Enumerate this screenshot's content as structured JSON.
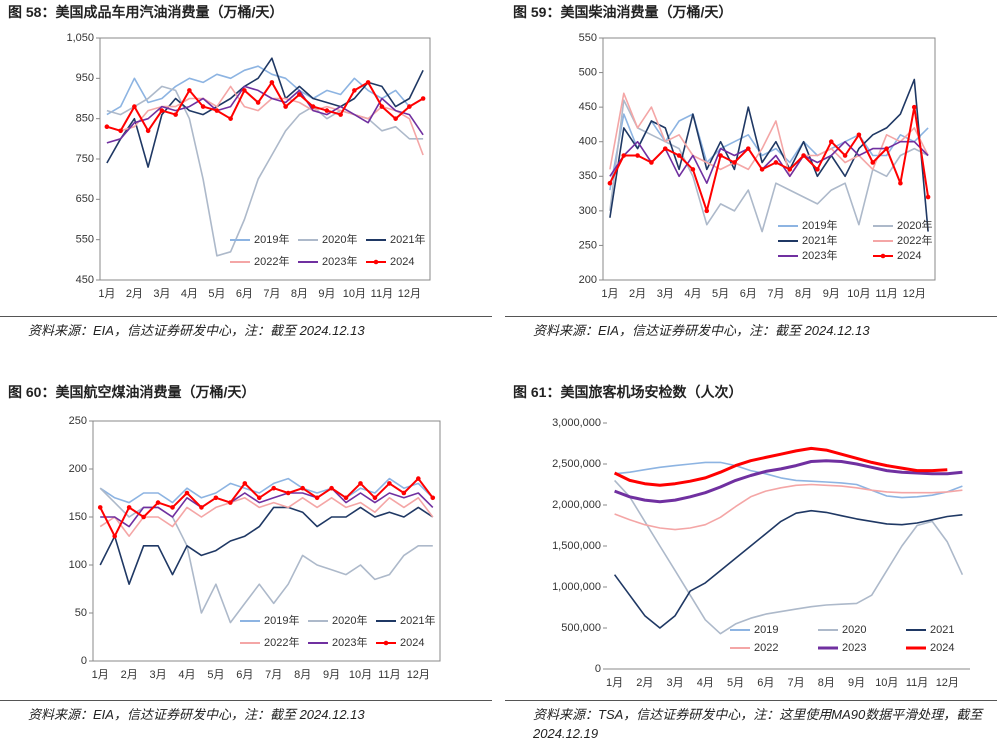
{
  "chart_data": [
    {
      "type": "line",
      "title": "图 58：美国成品车用汽油消费量（万桶/天）",
      "source": "资料来源：EIA，信达证券研发中心，注：截至 2024.12.13",
      "categories": [
        "1月",
        null,
        "2月",
        null,
        "3月",
        null,
        "4月",
        null,
        "5月",
        null,
        "6月",
        null,
        "7月",
        null,
        "8月",
        null,
        "9月",
        null,
        "10月",
        null,
        "11月",
        null,
        "12月",
        null
      ],
      "ylim": [
        450,
        1050
      ],
      "yticks": [
        450,
        550,
        650,
        750,
        850,
        950,
        {
          "value": 1050,
          "label": "1,050"
        }
      ],
      "legend": "lower right",
      "frame": true,
      "series": [
        {
          "name": "2019年",
          "color": "#8db4e2",
          "values": [
            860,
            880,
            950,
            890,
            900,
            930,
            950,
            940,
            960,
            950,
            970,
            980,
            960,
            950,
            920,
            900,
            920,
            910,
            950,
            920,
            900,
            920,
            880,
            900
          ]
        },
        {
          "name": "2020年",
          "color": "#adb9ca",
          "values": [
            870,
            860,
            880,
            900,
            930,
            920,
            850,
            700,
            510,
            520,
            600,
            700,
            760,
            820,
            860,
            880,
            850,
            870,
            860,
            850,
            820,
            830,
            800,
            800
          ]
        },
        {
          "name": "2021年",
          "color": "#1f3864",
          "values": [
            740,
            800,
            850,
            730,
            860,
            900,
            870,
            860,
            880,
            900,
            930,
            950,
            1000,
            900,
            930,
            900,
            890,
            880,
            900,
            940,
            930,
            880,
            900,
            970
          ]
        },
        {
          "name": "2022年",
          "color": "#f4a6a6",
          "values": [
            830,
            820,
            830,
            870,
            880,
            880,
            900,
            900,
            880,
            930,
            880,
            870,
            900,
            900,
            890,
            870,
            880,
            870,
            860,
            850,
            880,
            870,
            850,
            760
          ]
        },
        {
          "name": "2023年",
          "color": "#7030a0",
          "values": [
            790,
            800,
            840,
            850,
            880,
            870,
            880,
            900,
            870,
            880,
            930,
            920,
            900,
            890,
            920,
            870,
            860,
            880,
            860,
            840,
            900,
            870,
            860,
            810
          ]
        },
        {
          "name": "2024",
          "color": "#ff0000",
          "marker": true,
          "values": [
            830,
            820,
            880,
            820,
            870,
            860,
            920,
            880,
            870,
            850,
            920,
            890,
            940,
            880,
            910,
            880,
            870,
            860,
            920,
            940,
            880,
            850,
            880,
            900
          ]
        }
      ]
    },
    {
      "type": "line",
      "title": "图 59：美国柴油消费量（万桶/天）",
      "source": "资料来源：EIA，信达证券研发中心，注：截至 2024.12.13",
      "categories": [
        "1月",
        null,
        "2月",
        null,
        "3月",
        null,
        "4月",
        null,
        "5月",
        null,
        "6月",
        null,
        "7月",
        null,
        "8月",
        null,
        "9月",
        null,
        "10月",
        null,
        "11月",
        null,
        "12月",
        null
      ],
      "ylim": [
        200,
        550
      ],
      "yticks": [
        200,
        250,
        300,
        350,
        400,
        450,
        500,
        550
      ],
      "legend": "lower left",
      "frame": true,
      "series": [
        {
          "name": "2019年",
          "color": "#8db4e2",
          "values": [
            330,
            440,
            390,
            430,
            400,
            430,
            440,
            370,
            390,
            400,
            410,
            380,
            390,
            370,
            400,
            380,
            390,
            400,
            410,
            380,
            380,
            410,
            400,
            420
          ]
        },
        {
          "name": "2020年",
          "color": "#adb9ca",
          "values": [
            300,
            460,
            420,
            410,
            400,
            390,
            350,
            280,
            310,
            300,
            330,
            270,
            340,
            330,
            320,
            310,
            330,
            340,
            280,
            360,
            350,
            380,
            390,
            380
          ]
        },
        {
          "name": "2021年",
          "color": "#1f3864",
          "values": [
            290,
            420,
            390,
            430,
            420,
            360,
            440,
            360,
            400,
            360,
            450,
            370,
            400,
            360,
            400,
            350,
            380,
            350,
            390,
            410,
            420,
            440,
            490,
            270
          ]
        },
        {
          "name": "2022年",
          "color": "#f4a6a6",
          "values": [
            360,
            470,
            420,
            450,
            400,
            410,
            380,
            370,
            360,
            370,
            360,
            390,
            430,
            350,
            380,
            380,
            390,
            370,
            380,
            360,
            410,
            400,
            420,
            380
          ]
        },
        {
          "name": "2023年",
          "color": "#7030a0",
          "values": [
            350,
            380,
            400,
            370,
            390,
            350,
            380,
            340,
            390,
            380,
            390,
            360,
            380,
            350,
            380,
            370,
            380,
            400,
            380,
            390,
            390,
            400,
            400,
            380
          ]
        },
        {
          "name": "2024",
          "color": "#ff0000",
          "marker": true,
          "values": [
            340,
            380,
            380,
            370,
            390,
            380,
            360,
            300,
            380,
            370,
            390,
            360,
            370,
            360,
            380,
            360,
            400,
            380,
            410,
            370,
            390,
            340,
            450,
            320
          ]
        }
      ]
    },
    {
      "type": "line",
      "title": "图 60：美国航空煤油消费量（万桶/天）",
      "source": "资料来源：EIA，信达证券研发中心，注：截至 2024.12.13",
      "categories": [
        "1月",
        null,
        "2月",
        null,
        "3月",
        null,
        "4月",
        null,
        "5月",
        null,
        "6月",
        null,
        "7月",
        null,
        "8月",
        null,
        "9月",
        null,
        "10月",
        null,
        "11月",
        null,
        "12月",
        null
      ],
      "ylim": [
        0,
        250
      ],
      "yticks": [
        0,
        50,
        100,
        150,
        200,
        250
      ],
      "legend": "lower right",
      "frame": true,
      "series": [
        {
          "name": "2019年",
          "color": "#8db4e2",
          "values": [
            180,
            170,
            165,
            175,
            175,
            165,
            180,
            170,
            175,
            185,
            180,
            175,
            185,
            190,
            180,
            175,
            180,
            170,
            180,
            175,
            190,
            180,
            185,
            170
          ]
        },
        {
          "name": "2020年",
          "color": "#adb9ca",
          "values": [
            180,
            165,
            150,
            160,
            160,
            150,
            120,
            50,
            80,
            40,
            60,
            80,
            60,
            80,
            110,
            100,
            95,
            90,
            100,
            85,
            90,
            110,
            120,
            120
          ]
        },
        {
          "name": "2021年",
          "color": "#1f3864",
          "values": [
            100,
            130,
            80,
            120,
            120,
            90,
            120,
            110,
            115,
            125,
            130,
            140,
            160,
            160,
            155,
            140,
            150,
            150,
            160,
            150,
            155,
            150,
            160,
            150
          ]
        },
        {
          "name": "2022年",
          "color": "#f4a6a6",
          "values": [
            140,
            150,
            130,
            150,
            150,
            140,
            160,
            150,
            160,
            165,
            170,
            160,
            165,
            160,
            170,
            160,
            170,
            160,
            165,
            155,
            170,
            160,
            170,
            150
          ]
        },
        {
          "name": "2023年",
          "color": "#7030a0",
          "values": [
            150,
            150,
            140,
            160,
            160,
            150,
            170,
            160,
            170,
            165,
            175,
            165,
            170,
            175,
            175,
            170,
            180,
            165,
            175,
            165,
            175,
            170,
            175,
            160
          ]
        },
        {
          "name": "2024",
          "color": "#ff0000",
          "marker": true,
          "values": [
            160,
            130,
            160,
            150,
            165,
            160,
            175,
            160,
            170,
            165,
            185,
            170,
            180,
            175,
            180,
            170,
            180,
            170,
            185,
            170,
            185,
            175,
            190,
            170
          ]
        }
      ]
    },
    {
      "type": "line",
      "title": "图 61：美国旅客机场安检数（人次）",
      "source": "资料来源：TSA，信达证券研发中心，注：这里使用MA90数据平滑处理，截至 2024.12.19",
      "categories": [
        "1月",
        null,
        "2月",
        null,
        "3月",
        null,
        "4月",
        null,
        "5月",
        null,
        "6月",
        null,
        "7月",
        null,
        "8月",
        null,
        "9月",
        null,
        "10月",
        null,
        "11月",
        null,
        "12月",
        null
      ],
      "ylim": [
        0,
        3000000
      ],
      "yticks": [
        0,
        {
          "value": 500000,
          "label": "500,000"
        },
        {
          "value": 1000000,
          "label": "1,000,000"
        },
        {
          "value": 1500000,
          "label": "1,500,000"
        },
        {
          "value": 2000000,
          "label": "2,000,000"
        },
        {
          "value": 2500000,
          "label": "2,500,000"
        },
        {
          "value": 3000000,
          "label": "3,000,000"
        }
      ],
      "legend": "lower center",
      "frame": false,
      "series": [
        {
          "name": "2019",
          "color": "#8db4e2",
          "values": [
            2380000,
            2400000,
            2430000,
            2460000,
            2480000,
            2500000,
            2520000,
            2520000,
            2480000,
            2420000,
            2380000,
            2330000,
            2300000,
            2290000,
            2280000,
            2270000,
            2250000,
            2180000,
            2110000,
            2090000,
            2100000,
            2120000,
            2160000,
            2230000
          ]
        },
        {
          "name": "2020",
          "color": "#adb9ca",
          "values": [
            2300000,
            2100000,
            1800000,
            1500000,
            1200000,
            900000,
            600000,
            430000,
            550000,
            620000,
            670000,
            700000,
            730000,
            760000,
            780000,
            790000,
            800000,
            900000,
            1200000,
            1500000,
            1750000,
            1800000,
            1550000,
            1150000
          ]
        },
        {
          "name": "2021",
          "color": "#1f3864",
          "values": [
            1150000,
            900000,
            650000,
            500000,
            650000,
            950000,
            1050000,
            1200000,
            1350000,
            1500000,
            1650000,
            1800000,
            1900000,
            1930000,
            1910000,
            1870000,
            1830000,
            1800000,
            1770000,
            1760000,
            1780000,
            1820000,
            1860000,
            1880000
          ]
        },
        {
          "name": "2022",
          "color": "#f4a6a6",
          "values": [
            1890000,
            1820000,
            1760000,
            1720000,
            1700000,
            1720000,
            1760000,
            1850000,
            1980000,
            2100000,
            2170000,
            2210000,
            2240000,
            2250000,
            2240000,
            2230000,
            2210000,
            2180000,
            2160000,
            2150000,
            2150000,
            2150000,
            2160000,
            2180000
          ]
        },
        {
          "name": "2023",
          "color": "#7030a0",
          "bold": true,
          "values": [
            2170000,
            2100000,
            2060000,
            2040000,
            2060000,
            2100000,
            2150000,
            2220000,
            2300000,
            2360000,
            2410000,
            2440000,
            2480000,
            2530000,
            2540000,
            2530000,
            2500000,
            2460000,
            2420000,
            2400000,
            2390000,
            2380000,
            2380000,
            2400000
          ]
        },
        {
          "name": "2024",
          "color": "#ff0000",
          "bold": true,
          "values": [
            2390000,
            2300000,
            2260000,
            2240000,
            2260000,
            2290000,
            2330000,
            2400000,
            2480000,
            2540000,
            2580000,
            2620000,
            2660000,
            2690000,
            2670000,
            2620000,
            2570000,
            2520000,
            2480000,
            2450000,
            2420000,
            2420000,
            2430000,
            null
          ]
        }
      ]
    }
  ]
}
